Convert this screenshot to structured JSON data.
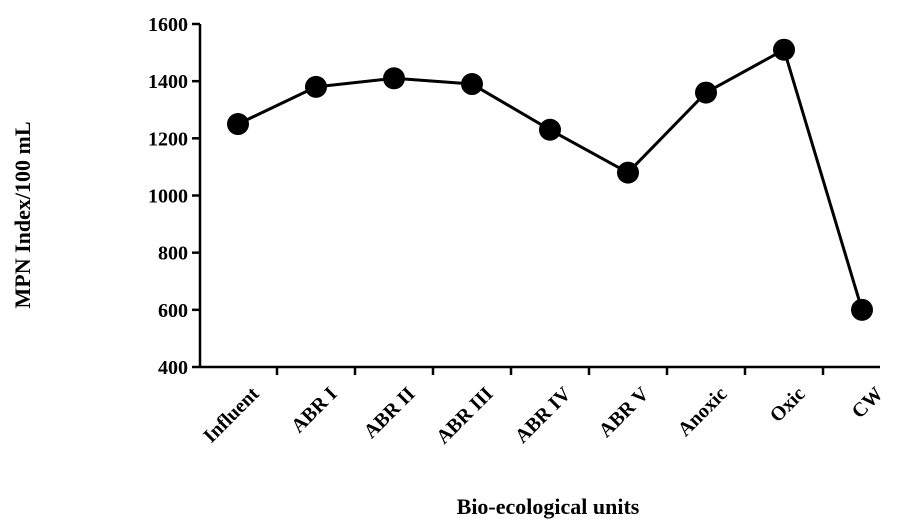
{
  "chart_data": {
    "type": "line",
    "title": "",
    "xlabel": "Bio-ecological units",
    "ylabel": "MPN Index/100 mL",
    "categories": [
      "Influent",
      "ABR I",
      "ABR II",
      "ABR III",
      "ABR IV",
      "ABR V",
      "Anoxic",
      "Oxic",
      "CW"
    ],
    "series": [
      {
        "values": [
          1250,
          1380,
          1410,
          1390,
          1230,
          1080,
          1360,
          1510,
          600
        ]
      }
    ],
    "ylim": [
      400,
      1600
    ],
    "yticks": [
      400,
      600,
      800,
      1000,
      1200,
      1400,
      1600
    ],
    "grid": false,
    "legend": "none",
    "colors": {
      "line": "#000000",
      "marker": "#000000",
      "axis": "#000000"
    }
  }
}
